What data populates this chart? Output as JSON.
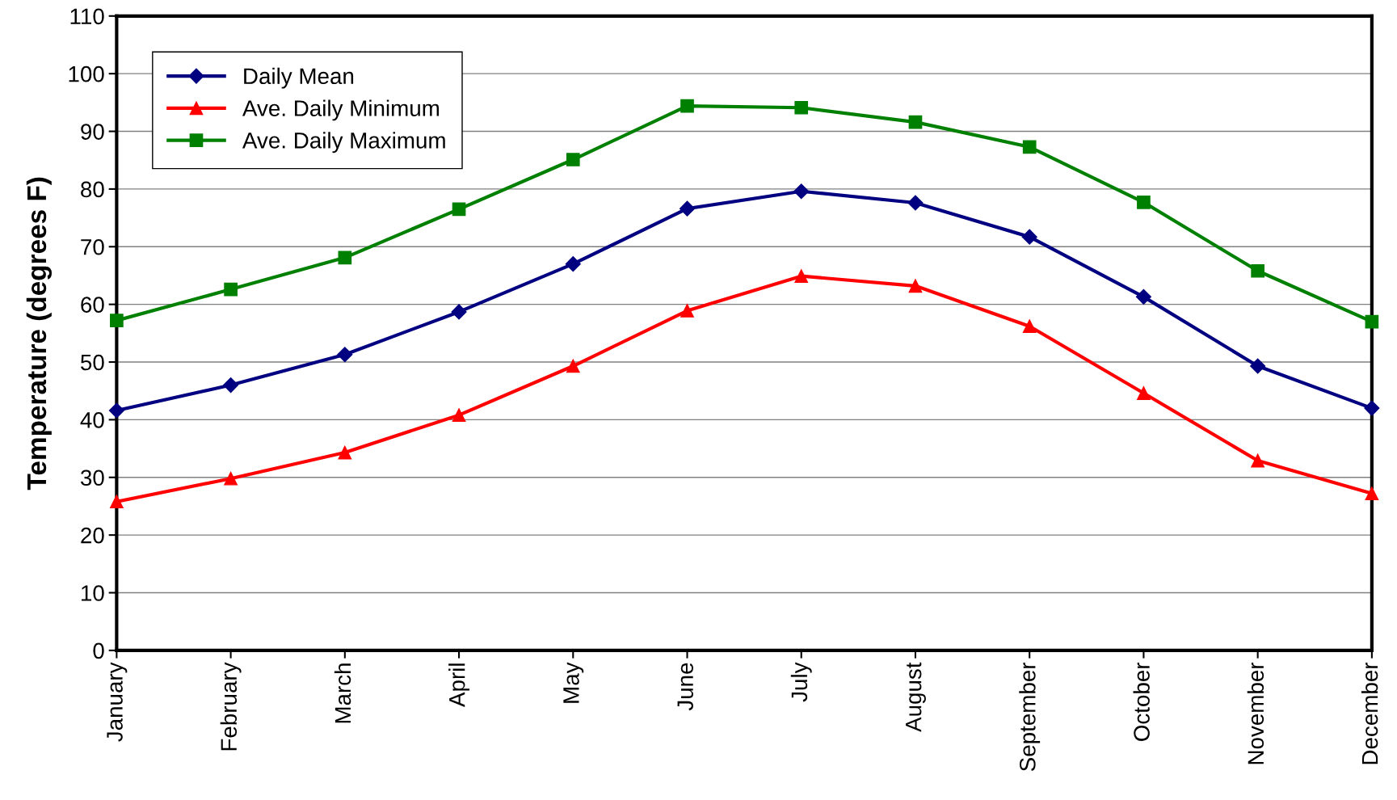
{
  "chart_data": {
    "type": "line",
    "ylabel": "Temperature (degrees F)",
    "categories": [
      "January",
      "February",
      "March",
      "April",
      "May",
      "June",
      "July",
      "August",
      "September",
      "October",
      "November",
      "December"
    ],
    "series": [
      {
        "name": "Daily Mean",
        "color": "#000080",
        "marker": "diamond",
        "values": [
          41.6,
          46.0,
          51.3,
          58.7,
          67.0,
          76.6,
          79.6,
          77.6,
          71.7,
          61.3,
          49.3,
          42.0
        ]
      },
      {
        "name": "Ave. Daily Minimum",
        "color": "#ff0000",
        "marker": "triangle",
        "values": [
          25.8,
          29.8,
          34.3,
          40.8,
          49.3,
          58.9,
          64.9,
          63.2,
          56.2,
          44.6,
          32.9,
          27.2
        ]
      },
      {
        "name": "Ave. Daily Maximum",
        "color": "#008000",
        "marker": "square",
        "values": [
          57.2,
          62.6,
          68.1,
          76.5,
          85.1,
          94.4,
          94.1,
          91.6,
          87.3,
          77.7,
          65.8,
          57.0
        ]
      }
    ],
    "ylim": [
      0,
      110
    ],
    "yticks": [
      0,
      10,
      20,
      30,
      40,
      50,
      60,
      70,
      80,
      90,
      100,
      110
    ],
    "grid": "y",
    "legend": "top left",
    "line_style": "solid"
  }
}
